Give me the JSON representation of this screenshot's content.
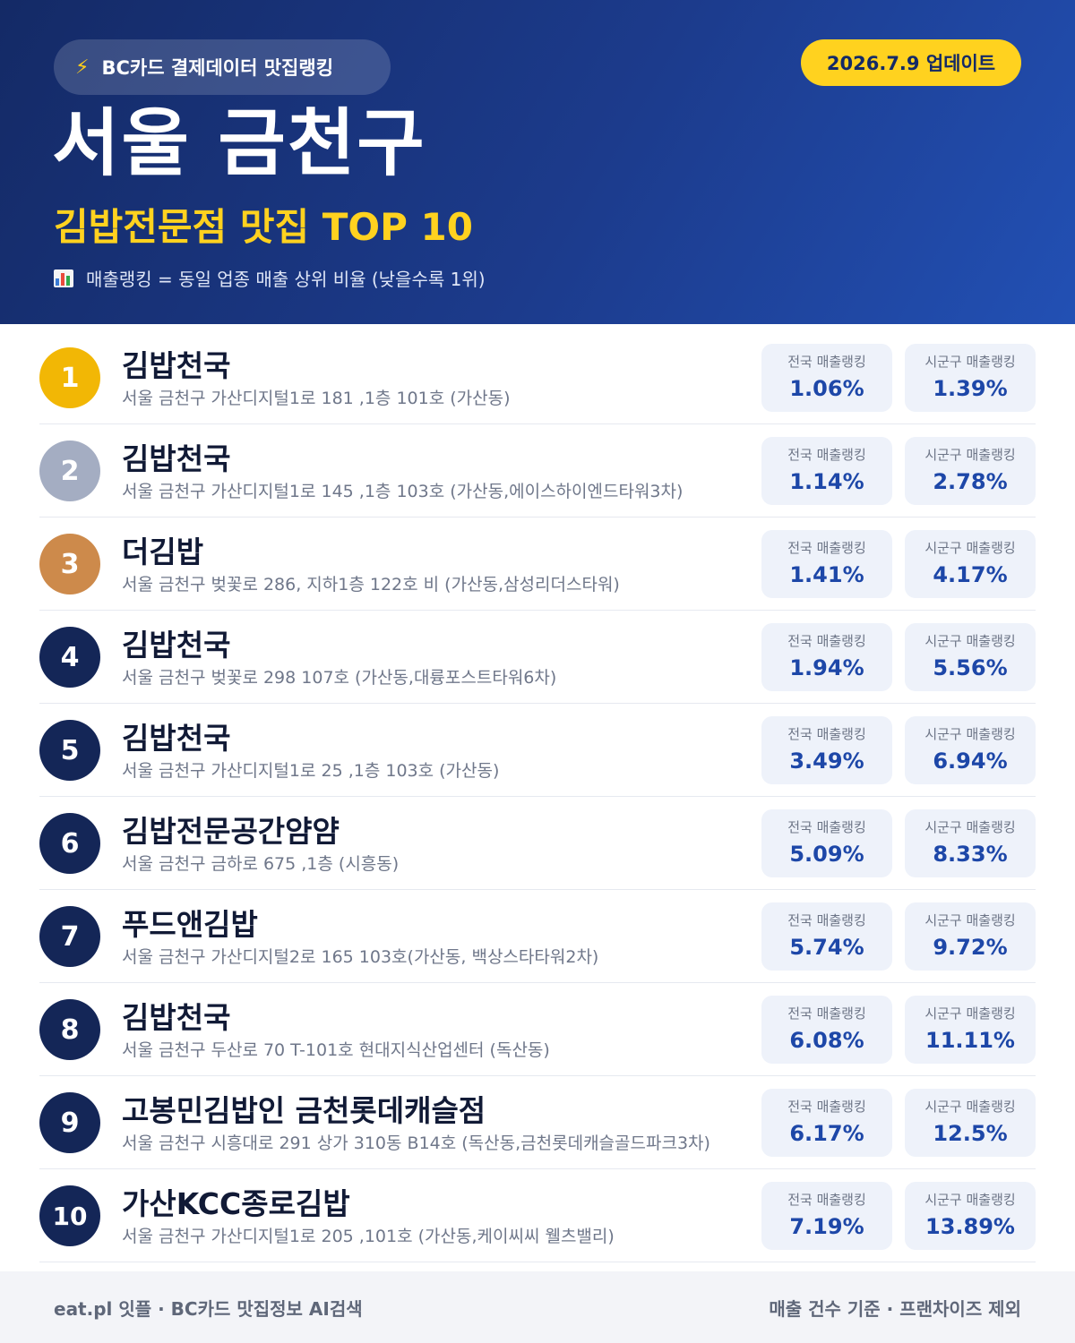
{
  "header": {
    "source_label": "BC카드 결제데이터 맛집랭킹",
    "update_label": "2026.7.9 업데이트",
    "region": "서울 금천구",
    "category": "김밥전문점 맛집 TOP 10",
    "legend": "매출랭킹 = 동일 업종 매출 상위 비율 (낮을수록 1위)",
    "icons": {
      "source": "lightning-icon",
      "legend": "bar-chart-icon"
    },
    "colors": {
      "accent": "#ffd21f",
      "background": "#1c3b8c"
    }
  },
  "labels": {
    "national": "전국 매출랭킹",
    "local": "시군구 매출랭킹"
  },
  "restaurants": [
    {
      "rank": "1",
      "name": "김밥천국",
      "address": "서울 금천구 가산디지털1로 181 ,1층 101호 (가산동)",
      "national": "1.06%",
      "local": "1.39%"
    },
    {
      "rank": "2",
      "name": "김밥천국",
      "address": "서울 금천구 가산디지털1로 145 ,1층 103호 (가산동,에이스하이엔드타워3차)",
      "national": "1.14%",
      "local": "2.78%"
    },
    {
      "rank": "3",
      "name": "더김밥",
      "address": "서울 금천구 벚꽃로 286, 지하1층 122호 비 (가산동,삼성리더스타워)",
      "national": "1.41%",
      "local": "4.17%"
    },
    {
      "rank": "4",
      "name": "김밥천국",
      "address": "서울 금천구 벚꽃로 298 107호 (가산동,대륭포스트타워6차)",
      "national": "1.94%",
      "local": "5.56%"
    },
    {
      "rank": "5",
      "name": "김밥천국",
      "address": "서울 금천구 가산디지털1로 25 ,1층 103호 (가산동)",
      "national": "3.49%",
      "local": "6.94%"
    },
    {
      "rank": "6",
      "name": "김밥전문공간얌얌",
      "address": "서울 금천구 금하로 675 ,1층 (시흥동)",
      "national": "5.09%",
      "local": "8.33%"
    },
    {
      "rank": "7",
      "name": "푸드앤김밥",
      "address": "서울 금천구 가산디지털2로 165 103호(가산동, 백상스타타워2차)",
      "national": "5.74%",
      "local": "9.72%"
    },
    {
      "rank": "8",
      "name": "김밥천국",
      "address": "서울 금천구 두산로 70 T-101호 현대지식산업센터 (독산동)",
      "national": "6.08%",
      "local": "11.11%"
    },
    {
      "rank": "9",
      "name": "고봉민김밥인 금천롯데캐슬점",
      "address": "서울 금천구 시흥대로 291 상가 310동 B14호 (독산동,금천롯데캐슬골드파크3차)",
      "national": "6.17%",
      "local": "12.5%"
    },
    {
      "rank": "10",
      "name": "가산KCC종로김밥",
      "address": "서울 금천구 가산디지털1로 205 ,101호 (가산동,케이씨씨 웰츠밸리)",
      "national": "7.19%",
      "local": "13.89%"
    }
  ],
  "footer": {
    "left": "eat.pl 잇플 · BC카드 맛집정보 AI검색",
    "right": "매출 건수 기준 · 프랜차이즈 제외"
  }
}
